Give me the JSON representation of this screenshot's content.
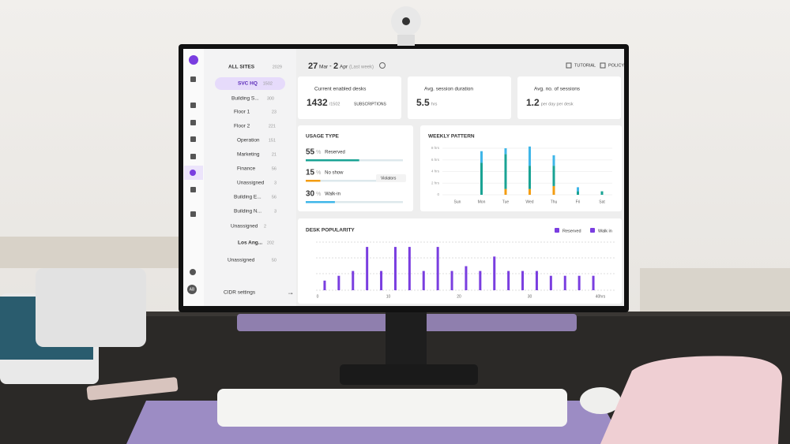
{
  "sidebar": {
    "tree": [
      {
        "label": "ALL SITES",
        "count": "2029"
      },
      {
        "label": "SVC HQ",
        "count": "1502"
      },
      {
        "label": "Building S...",
        "count": "300"
      },
      {
        "label": "Floor 1",
        "count": "23"
      },
      {
        "label": "Floor 2",
        "count": "221"
      },
      {
        "label": "Operation",
        "count": "151"
      },
      {
        "label": "Marketing",
        "count": "21"
      },
      {
        "label": "Finance",
        "count": "56"
      },
      {
        "label": "Unassigned",
        "count": "3"
      },
      {
        "label": "Building E...",
        "count": "56"
      },
      {
        "label": "Building N...",
        "count": "3"
      },
      {
        "label": "Unassigned",
        "count": "2"
      },
      {
        "label": "Los Ang...",
        "count": "202"
      },
      {
        "label": "Unassigned",
        "count": "50"
      }
    ],
    "footer": "CIDR settings",
    "avatar": "AB"
  },
  "header": {
    "day_start": "27",
    "month_start": "Mar",
    "separator": "-",
    "day_end": "2",
    "month_end": "Apr",
    "range_note": "(Last week)",
    "tutorial": "TUTORIAL",
    "policy": "POLICY"
  },
  "kpis": [
    {
      "title": "Current enabled desks",
      "value": "1432",
      "suffix": "/1502",
      "link": "SUBSCRIPTIONS"
    },
    {
      "title": "Avg. session duration",
      "value": "5.5",
      "suffix": "hrs"
    },
    {
      "title": "Avg. no. of sessions",
      "value": "1.2",
      "suffix": "per day per desk"
    }
  ],
  "usage": {
    "title": "USAGE TYPE",
    "unit": "%",
    "violators": "Violators",
    "rows": [
      {
        "value": 55,
        "label": "Reserved",
        "color": "#1aa394"
      },
      {
        "value": 15,
        "label": "No show",
        "color": "#f39c12"
      },
      {
        "value": 30,
        "label": "Walk-in",
        "color": "#3fb6e8"
      }
    ]
  },
  "chart_data": [
    {
      "type": "bar",
      "stacked": true,
      "title": "WEEKLY PATTERN",
      "categories": [
        "Sun",
        "Mon",
        "Tue",
        "Wed",
        "Thu",
        "Fri",
        "Sat"
      ],
      "series": [
        {
          "color": "#f39c12",
          "values": [
            0,
            0,
            1,
            1,
            1.5,
            0,
            0
          ]
        },
        {
          "color": "#1aa394",
          "values": [
            0,
            5.5,
            6,
            4,
            3.5,
            0.6,
            0.6
          ]
        },
        {
          "color": "#3fb6e8",
          "values": [
            0,
            2,
            1,
            3.3,
            1.8,
            0.7,
            0
          ]
        }
      ],
      "ylim": [
        0,
        8
      ],
      "yticks": [
        {
          "value": 8,
          "label": "8 hrs"
        },
        {
          "value": 6,
          "label": "6 hrs"
        },
        {
          "value": 4,
          "label": "4 hrs"
        },
        {
          "value": 2,
          "label": "2 hrs"
        },
        0
      ]
    },
    {
      "type": "bar",
      "title": "DESK POPULARITY",
      "legend": [
        "Reserved",
        "Walk in"
      ],
      "color": "#7a3ee0",
      "x": [
        1,
        3,
        5,
        7,
        9,
        11,
        13,
        15,
        17,
        19,
        21,
        23,
        25,
        27,
        29,
        31,
        33,
        35,
        37,
        39
      ],
      "values": [
        2,
        3,
        4,
        9,
        4,
        9,
        9,
        4,
        9,
        4,
        5,
        4,
        7,
        4,
        4,
        4,
        3,
        3,
        3,
        3
      ],
      "xlim": [
        0,
        40
      ],
      "xticks": [
        0,
        10,
        20,
        30,
        {
          "value": 40,
          "label": "40hrs"
        }
      ],
      "ylim": [
        0,
        10
      ]
    }
  ]
}
